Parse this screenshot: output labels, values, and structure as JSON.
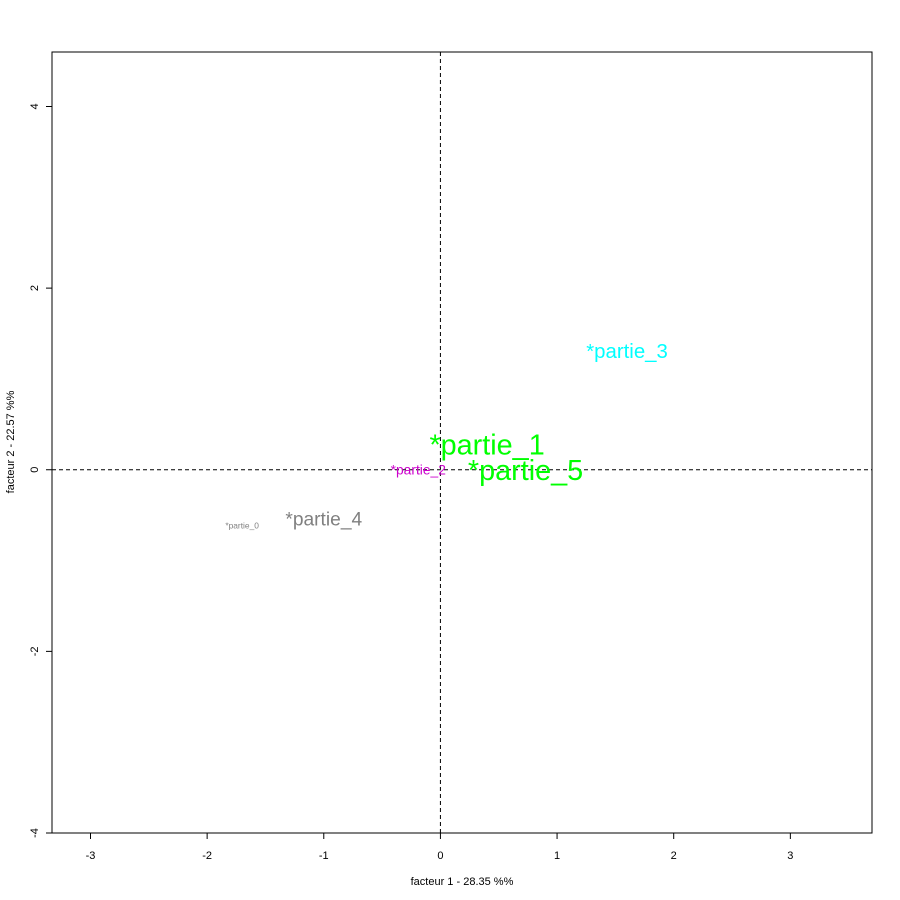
{
  "chart_data": {
    "type": "scatter",
    "xlabel": "facteur  1  - 28.35 %%",
    "ylabel": "facteur  2  - 22.57 %%",
    "xlim": [
      -3.33,
      3.7
    ],
    "ylim": [
      -4.0,
      4.6
    ],
    "xticks": [
      -3,
      -2,
      -1,
      0,
      1,
      2,
      3
    ],
    "yticks": [
      -4,
      -2,
      0,
      2,
      4
    ],
    "reference_lines": {
      "x": 0,
      "y": 0,
      "style": "dashed"
    },
    "grid": false,
    "legend": "none",
    "points": [
      {
        "label": "*partie_0",
        "x": -1.7,
        "y": -0.62,
        "color": "#808080",
        "size": 0.7
      },
      {
        "label": "*partie_1",
        "x": 0.4,
        "y": 0.25,
        "color": "#00ff00",
        "size": 2.4
      },
      {
        "label": "*partie_2",
        "x": -0.19,
        "y": -0.01,
        "color": "#cc00cc",
        "size": 1.15
      },
      {
        "label": "*partie_3",
        "x": 1.6,
        "y": 1.29,
        "color": "#00ffff",
        "size": 1.7
      },
      {
        "label": "*partie_4",
        "x": -1.0,
        "y": -0.56,
        "color": "#808080",
        "size": 1.6
      },
      {
        "label": "*partie_5",
        "x": 0.73,
        "y": -0.03,
        "color": "#00ff00",
        "size": 2.4
      }
    ]
  }
}
